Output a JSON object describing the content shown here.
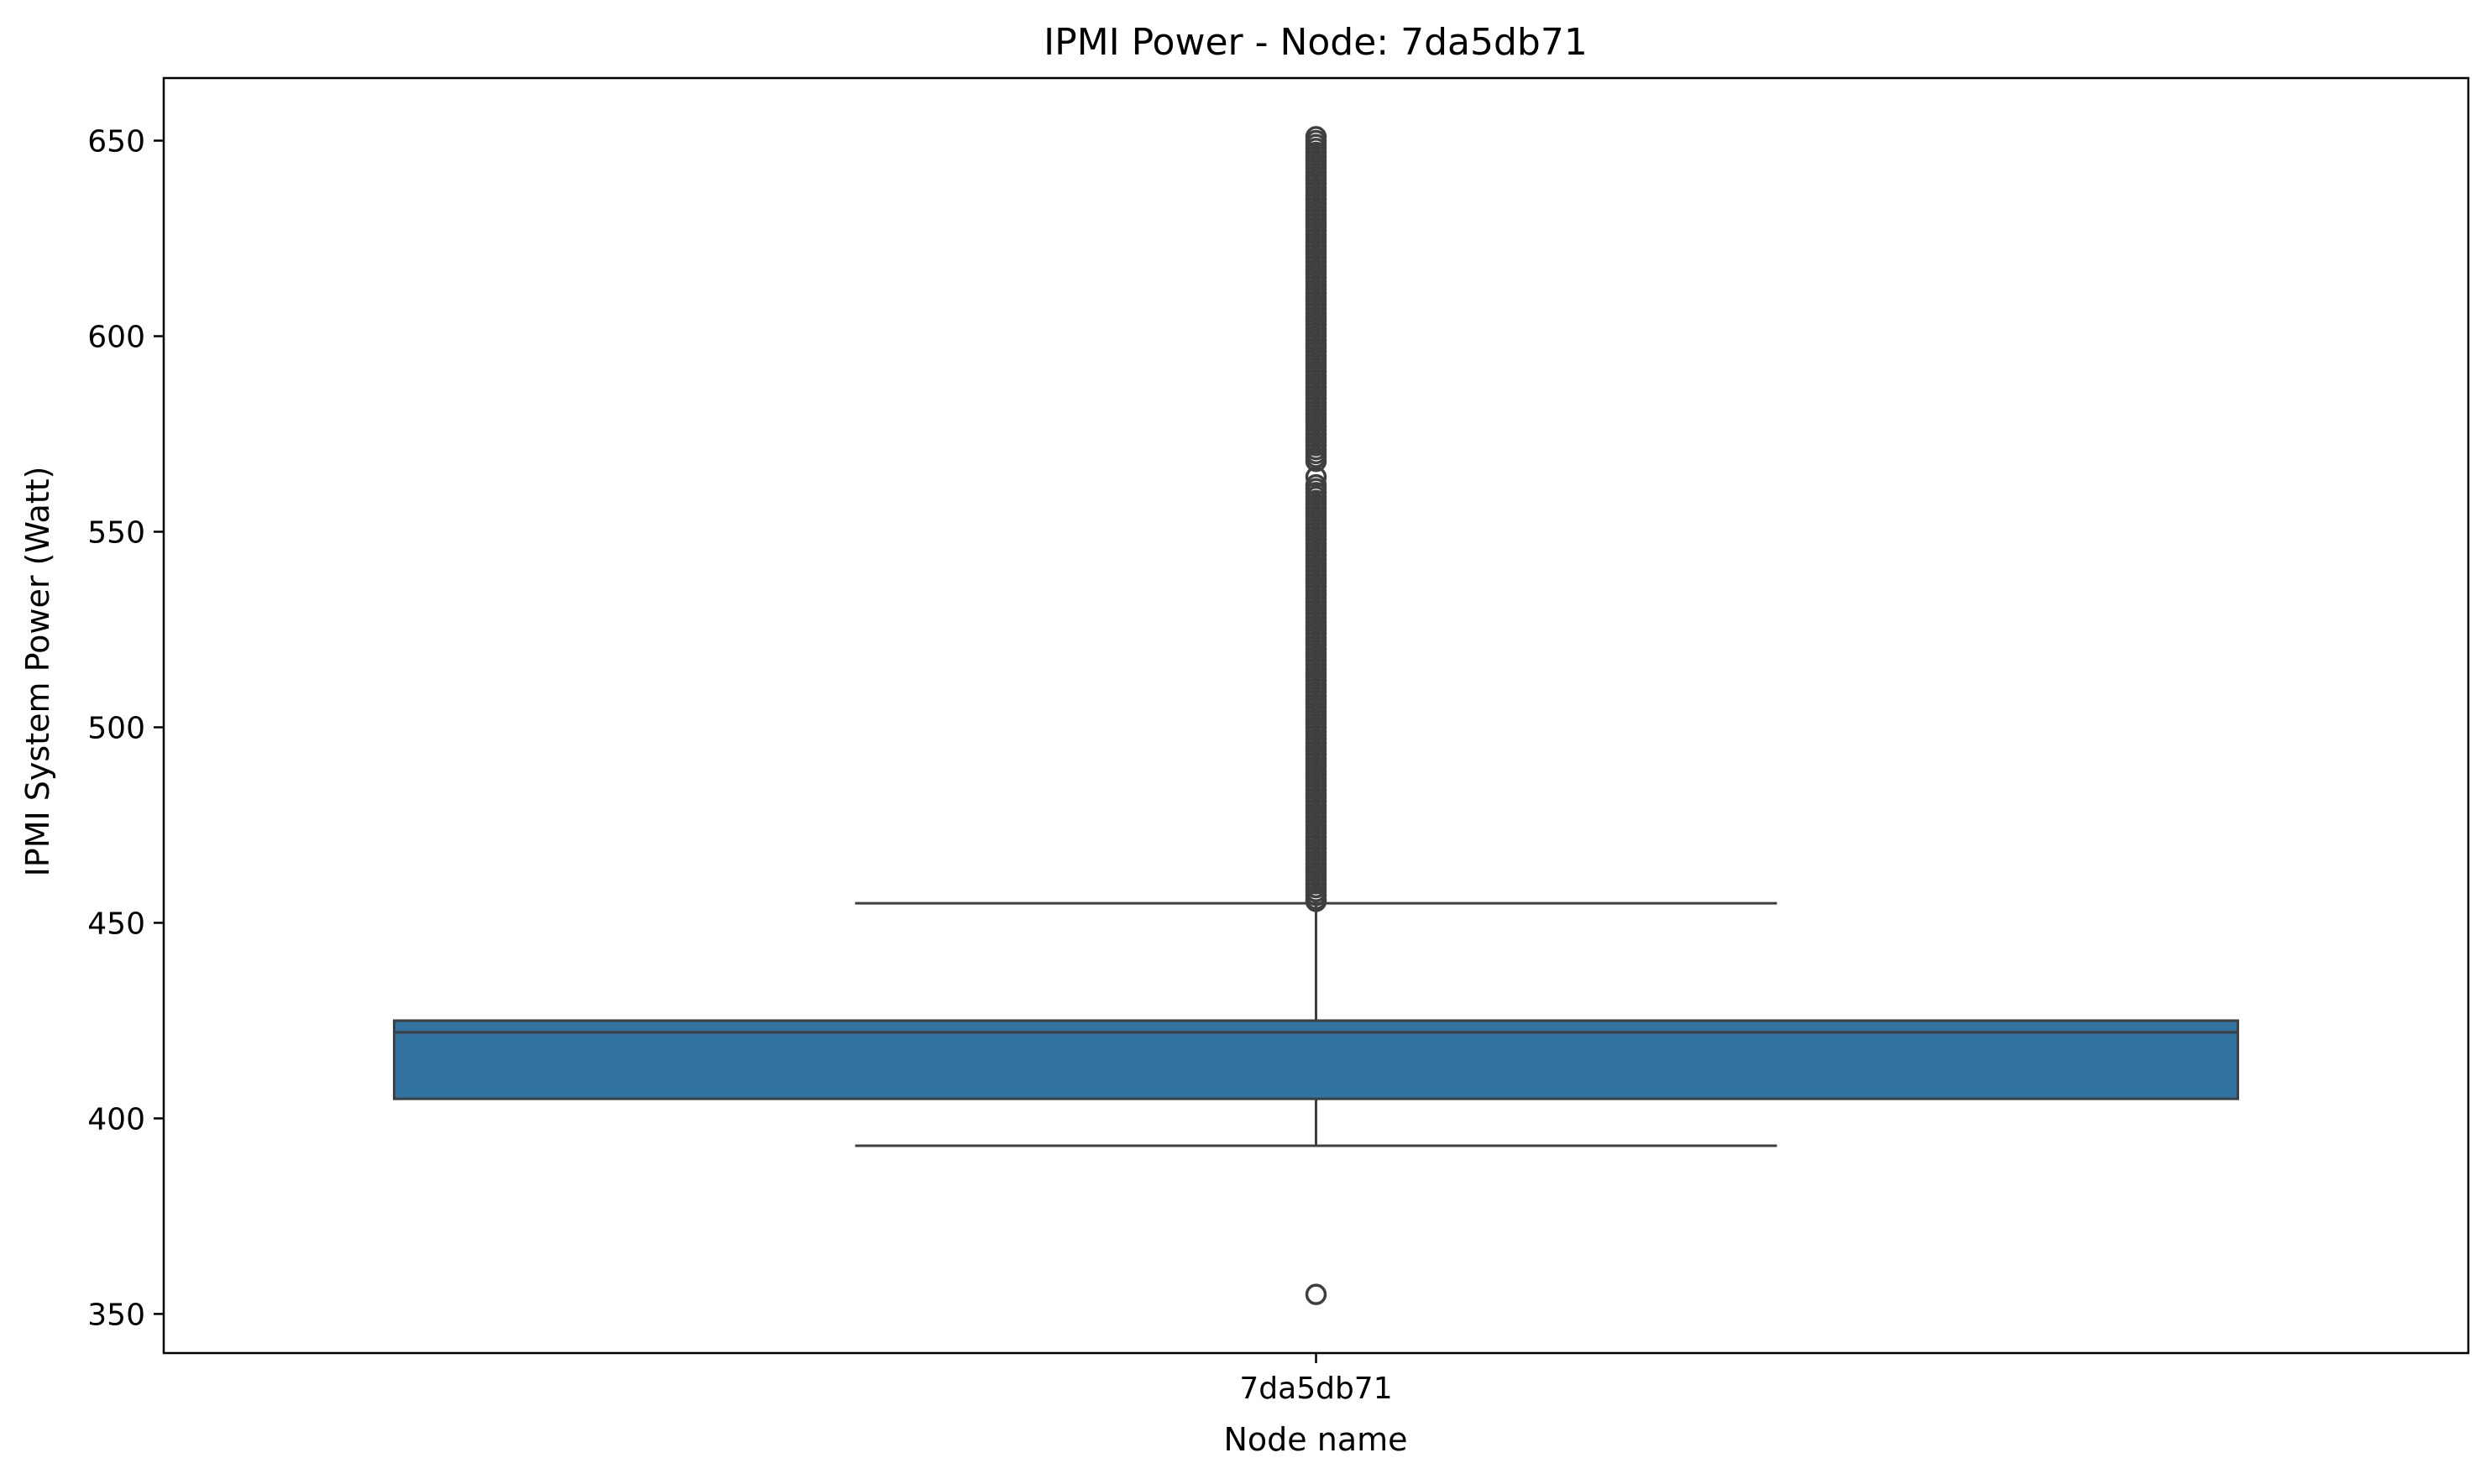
{
  "chart_data": {
    "type": "box",
    "title": "IPMI Power - Node: 7da5db71",
    "xlabel": "Node name",
    "ylabel": "IPMI System Power (Watt)",
    "categories": [
      "7da5db71"
    ],
    "ylim": [
      340,
      666
    ],
    "yticks": [
      350,
      400,
      450,
      500,
      550,
      600,
      650
    ],
    "grid": false,
    "boxes": [
      {
        "category": "7da5db71",
        "color": "#3274a1",
        "whisker_low": 393,
        "q1": 405,
        "median": 422,
        "q3": 425,
        "whisker_high": 455,
        "outliers": [
          355,
          455.5,
          456,
          457,
          458,
          459,
          460,
          461,
          462,
          463,
          464,
          465,
          466,
          467,
          468,
          469,
          470,
          471,
          472,
          473,
          474,
          475,
          476,
          477,
          478,
          479,
          480,
          481,
          482,
          483,
          484,
          485,
          486,
          487,
          488,
          489,
          490,
          491,
          492,
          493,
          494,
          495,
          496,
          497,
          498,
          499,
          500,
          501,
          502,
          503,
          504,
          505,
          506,
          507,
          508,
          509,
          510,
          511,
          512,
          513,
          514,
          515,
          516,
          517,
          518,
          519,
          520,
          521,
          522,
          523,
          524,
          525,
          526,
          527,
          528,
          529,
          530,
          531,
          532,
          533,
          534,
          535,
          536,
          537,
          538,
          539,
          540,
          541,
          542,
          543,
          544,
          545,
          546,
          547,
          548,
          549,
          550,
          551,
          552,
          553,
          554,
          555,
          556,
          557,
          558,
          559,
          560,
          561,
          562,
          564,
          568,
          569,
          570,
          571,
          572,
          573,
          574,
          575,
          576,
          577,
          578,
          579,
          580,
          581,
          582,
          583,
          584,
          585,
          586,
          587,
          588,
          589,
          590,
          591,
          592,
          593,
          594,
          595,
          596,
          597,
          598,
          599,
          600,
          601,
          602,
          603,
          604,
          605,
          606,
          607,
          608,
          609,
          610,
          611,
          612,
          613,
          614,
          615,
          616,
          617,
          618,
          619,
          620,
          621,
          622,
          623,
          624,
          625,
          626,
          627,
          628,
          629,
          630,
          631,
          632,
          633,
          634,
          635,
          636,
          637,
          638,
          639,
          640,
          641,
          642,
          643,
          644,
          645,
          646,
          647,
          648,
          649,
          650,
          651
        ]
      }
    ]
  }
}
